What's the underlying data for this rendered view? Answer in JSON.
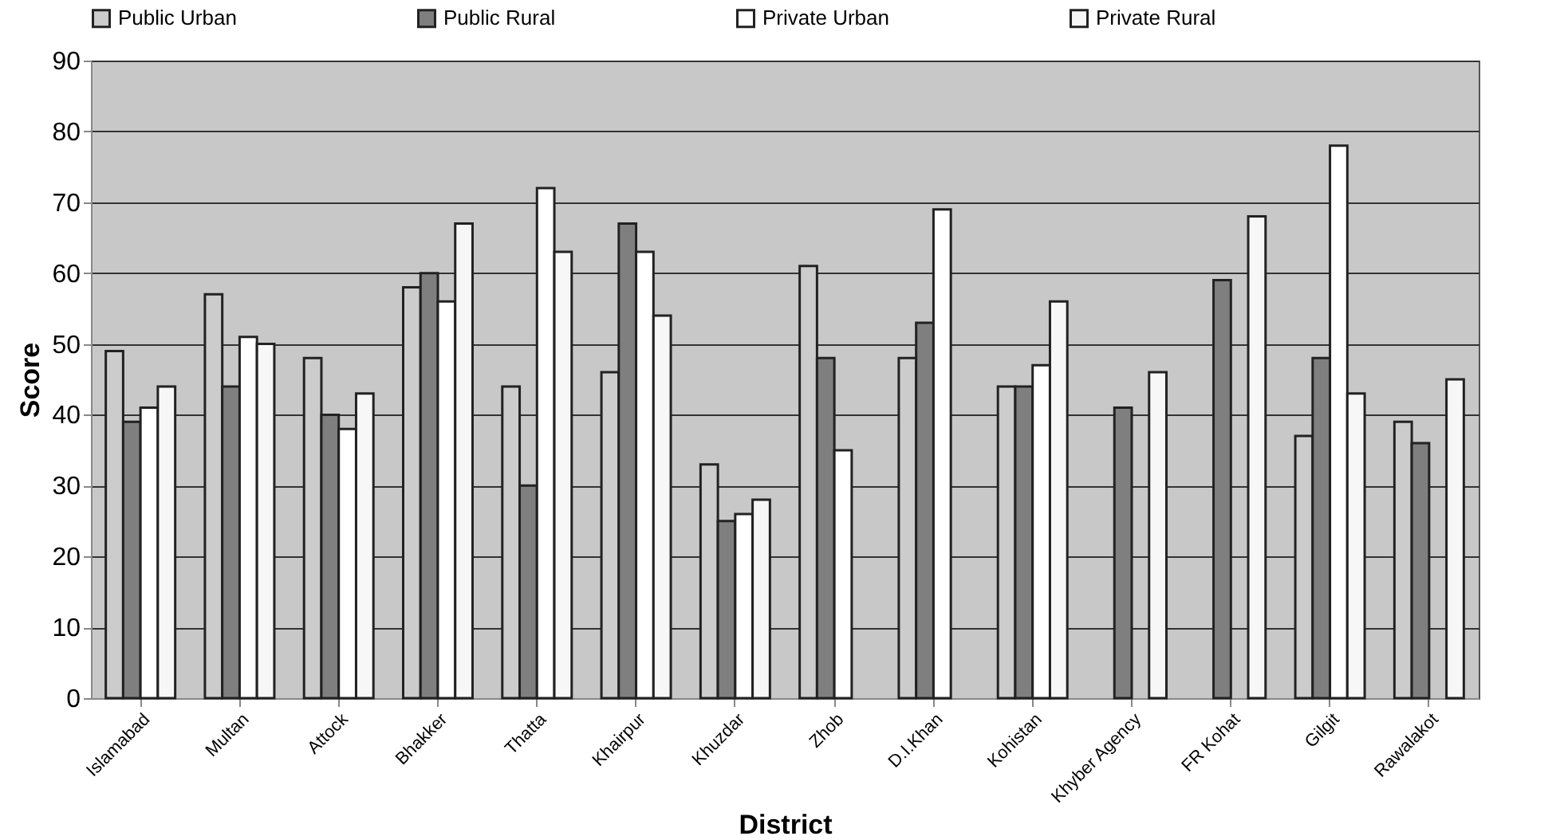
{
  "chart_data": {
    "type": "bar",
    "xlabel": "District",
    "ylabel": "Score",
    "categories": [
      "Islamabad",
      "Multan",
      "Attock",
      "Bhakker",
      "Thatta",
      "Khairpur",
      "Khuzdar",
      "Zhob",
      "D.I.Khan",
      "Kohistan",
      "Khyber Agency",
      "FR Kohat",
      "Gilgit",
      "Rawalakot"
    ],
    "series": [
      {
        "name": "Public Urban",
        "color": "#cccccc",
        "values": [
          49,
          57,
          48,
          58,
          44,
          46,
          33,
          61,
          48,
          44,
          null,
          null,
          37,
          39
        ]
      },
      {
        "name": "Public Rural",
        "color": "#7f7f7f",
        "values": [
          39,
          44,
          40,
          60,
          30,
          67,
          25,
          48,
          53,
          44,
          41,
          59,
          48,
          36
        ]
      },
      {
        "name": "Private Urban",
        "color": "#ffffff",
        "values": [
          41,
          51,
          38,
          56,
          72,
          63,
          26,
          35,
          69,
          47,
          null,
          null,
          78,
          null
        ]
      },
      {
        "name": "Private Rural",
        "color": "#f7f7f7",
        "values": [
          44,
          50,
          43,
          67,
          63,
          54,
          28,
          null,
          null,
          56,
          46,
          68,
          43,
          45
        ]
      }
    ],
    "ylim": [
      0,
      90
    ],
    "yticks": [
      0,
      10,
      20,
      30,
      40,
      50,
      60,
      70,
      80,
      90
    ],
    "grid": "y",
    "legend": "top"
  }
}
